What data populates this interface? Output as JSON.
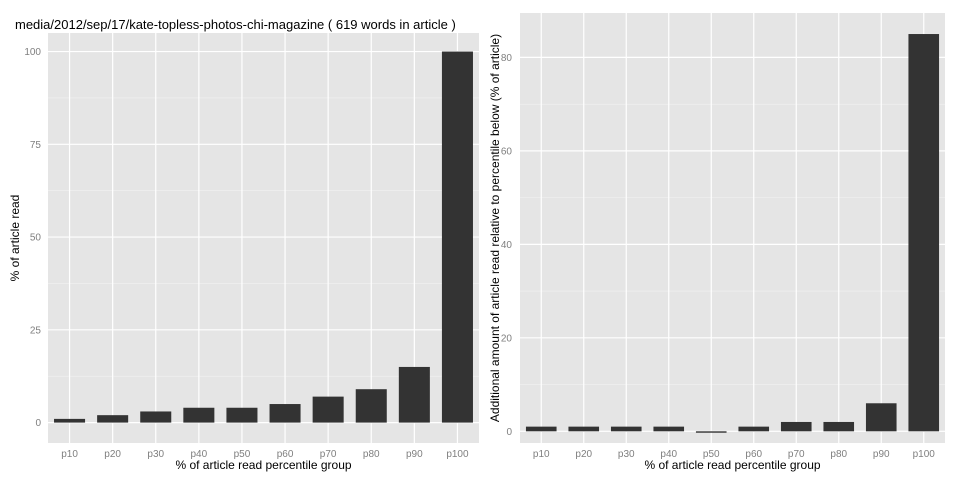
{
  "chart_data": [
    {
      "type": "bar",
      "title": "media/2012/sep/17/kate-topless-photos-chi-magazine ( 619 words in article )",
      "xlabel": "% of article read percentile group",
      "ylabel": "% of article read",
      "categories": [
        "p10",
        "p20",
        "p30",
        "p40",
        "p50",
        "p60",
        "p70",
        "p80",
        "p90",
        "p100"
      ],
      "values": [
        1,
        2,
        3,
        4,
        4,
        5,
        7,
        9,
        15,
        100
      ],
      "ylim": [
        -5.5,
        105
      ],
      "yticks": [
        0,
        25,
        50,
        75,
        100
      ],
      "grid": true,
      "colors": {
        "bar": "#333333",
        "panel": "#e5e5e5",
        "grid": "#ffffff"
      }
    },
    {
      "type": "bar",
      "title": "",
      "xlabel": "% of article read percentile group",
      "ylabel": "Additional amount of article read relative to percentile below (% of article)",
      "categories": [
        "p10",
        "p20",
        "p30",
        "p40",
        "p50",
        "p60",
        "p70",
        "p80",
        "p90",
        "p100"
      ],
      "values": [
        1,
        1,
        1,
        1,
        -0.3,
        1,
        2,
        2,
        6,
        85
      ],
      "ylim": [
        -2.5,
        89.5
      ],
      "yticks": [
        0,
        20,
        40,
        60,
        80
      ],
      "grid": true,
      "colors": {
        "bar": "#333333",
        "panel": "#e5e5e5",
        "grid": "#ffffff"
      }
    }
  ]
}
